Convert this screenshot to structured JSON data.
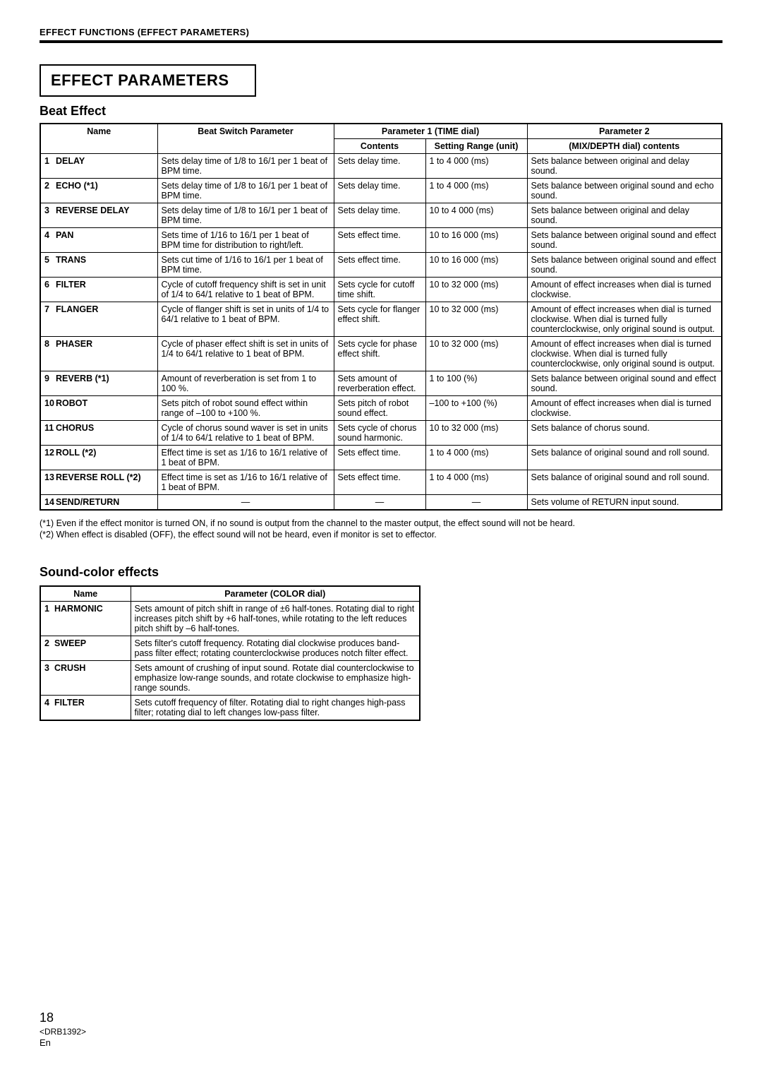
{
  "header": "EFFECT FUNCTIONS (EFFECT PARAMETERS)",
  "title": "EFFECT PARAMETERS",
  "beat": {
    "subtitle": "Beat Effect",
    "columns": {
      "name": "Name",
      "bsp": "Beat Switch Parameter",
      "p1": "Parameter 1 (TIME dial)",
      "contents": "Contents",
      "range": "Setting Range (unit)",
      "p2": "Parameter 2",
      "mixdepth": "(MIX/DEPTH dial) contents"
    },
    "rows": [
      {
        "n": "1",
        "name": "DELAY",
        "bsp": "Sets delay time of 1/8 to 16/1 per 1 beat of BPM time.",
        "contents": "Sets delay time.",
        "range": "1 to 4 000 (ms)",
        "p2": "Sets balance between original and delay sound."
      },
      {
        "n": "2",
        "name": "ECHO (*1)",
        "bsp": "Sets delay time of 1/8 to 16/1 per 1 beat of BPM time.",
        "contents": "Sets delay time.",
        "range": "1 to 4 000 (ms)",
        "p2": "Sets balance between original sound and echo sound."
      },
      {
        "n": "3",
        "name": "REVERSE DELAY",
        "bsp": "Sets delay time of 1/8 to 16/1 per 1 beat of BPM time.",
        "contents": "Sets delay time.",
        "range": "10 to 4 000 (ms)",
        "p2": "Sets balance between original and delay sound."
      },
      {
        "n": "4",
        "name": "PAN",
        "bsp": "Sets time of 1/16 to 16/1 per 1 beat of BPM time for distribution to right/left.",
        "contents": "Sets effect time.",
        "range": "10 to 16 000 (ms)",
        "p2": "Sets balance between original sound and effect sound."
      },
      {
        "n": "5",
        "name": "TRANS",
        "bsp": "Sets cut time of 1/16 to 16/1 per 1 beat of BPM time.",
        "contents": "Sets effect time.",
        "range": "10 to 16 000 (ms)",
        "p2": "Sets balance between original sound and effect sound."
      },
      {
        "n": "6",
        "name": "FILTER",
        "bsp": "Cycle of cutoff frequency shift is set in unit of 1/4 to 64/1 relative to 1 beat of BPM.",
        "contents": "Sets cycle for cutoff time shift.",
        "range": "10 to 32 000 (ms)",
        "p2": "Amount of effect increases when dial is turned clockwise."
      },
      {
        "n": "7",
        "name": "FLANGER",
        "bsp": "Cycle of flanger shift is set in units of 1/4 to 64/1 relative to 1 beat of BPM.",
        "contents": "Sets cycle for flanger effect shift.",
        "range": "10 to 32 000 (ms)",
        "p2": "Amount of effect increases when dial is turned clockwise. When dial is turned fully counterclockwise, only original sound is output."
      },
      {
        "n": "8",
        "name": "PHASER",
        "bsp": "Cycle of phaser effect shift is set in units of 1/4 to 64/1 relative to 1 beat of BPM.",
        "contents": "Sets cycle for phase effect shift.",
        "range": "10 to 32 000 (ms)",
        "p2": "Amount of effect increases when dial is turned clockwise. When dial is turned fully counterclockwise, only original sound is output."
      },
      {
        "n": "9",
        "name": "REVERB (*1)",
        "bsp": "Amount of reverberation is set from 1 to 100 %.",
        "contents": "Sets amount of reverberation effect.",
        "range": "1 to 100 (%)",
        "p2": "Sets balance between original sound and effect sound."
      },
      {
        "n": "10",
        "name": "ROBOT",
        "bsp": "Sets pitch of robot sound effect within range of –100 to +100 %.",
        "contents": "Sets pitch of robot sound effect.",
        "range": "–100 to +100 (%)",
        "p2": "Amount of effect increases when dial is turned clockwise."
      },
      {
        "n": "11",
        "name": "CHORUS",
        "bsp": "Cycle of chorus sound waver is set in units of 1/4 to 64/1 relative to 1 beat of BPM.",
        "contents": "Sets cycle of chorus sound harmonic.",
        "range": "10 to 32 000 (ms)",
        "p2": "Sets balance of chorus sound."
      },
      {
        "n": "12",
        "name": "ROLL (*2)",
        "bsp": "Effect time is set as 1/16 to 16/1 relative of 1 beat of BPM.",
        "contents": "Sets effect time.",
        "range": "1 to 4 000 (ms)",
        "p2": "Sets balance of original sound and roll sound."
      },
      {
        "n": "13",
        "name": "REVERSE ROLL (*2)",
        "bsp": "Effect time is set as 1/16 to 16/1 relative of 1 beat of BPM.",
        "contents": "Sets effect time.",
        "range": "1 to 4 000 (ms)",
        "p2": "Sets balance of original sound and roll sound."
      },
      {
        "n": "14",
        "name": "SEND/RETURN",
        "bsp": "—",
        "contents": "—",
        "range": "—",
        "p2": "Sets volume of RETURN input sound."
      }
    ],
    "note1": "(*1) Even if the effect monitor is turned ON, if no sound is output from the channel to the master output, the effect sound will not be heard.",
    "note2": "(*2) When effect is disabled (OFF), the effect sound will not be heard, even if monitor is set to effector."
  },
  "sound": {
    "subtitle": "Sound-color effects",
    "columns": {
      "name": "Name",
      "param": "Parameter (COLOR dial)"
    },
    "rows": [
      {
        "n": "1",
        "name": "HARMONIC",
        "param": "Sets amount of pitch shift in range of ±6 half-tones. Rotating dial to right increases pitch shift by +6 half-tones, while rotating to the left reduces pitch shift by –6 half-tones."
      },
      {
        "n": "2",
        "name": "SWEEP",
        "param": "Sets filter's cutoff frequency. Rotating dial clockwise produces band-pass filter effect; rotating counterclockwise produces notch filter effect."
      },
      {
        "n": "3",
        "name": "CRUSH",
        "param": "Sets amount of crushing of input sound. Rotate dial counterclockwise to emphasize low-range sounds, and rotate clockwise to emphasize high-range sounds."
      },
      {
        "n": "4",
        "name": "FILTER",
        "param": "Sets cutoff frequency of filter. Rotating dial to right changes high-pass filter; rotating dial to left changes low-pass filter."
      }
    ]
  },
  "footer": {
    "page": "18",
    "code": "<DRB1392>",
    "lang": "En"
  }
}
